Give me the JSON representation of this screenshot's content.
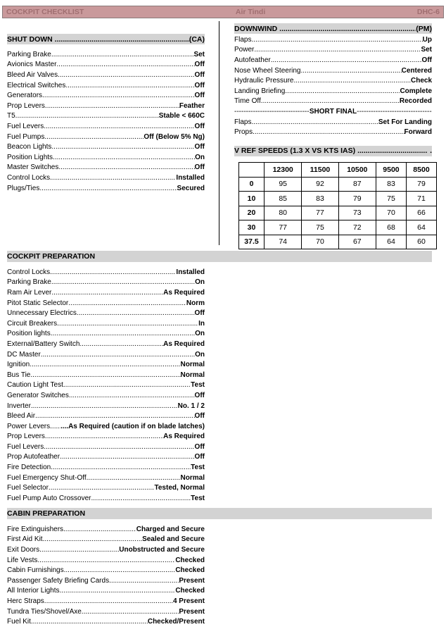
{
  "header": {
    "left": "COCKPIT CHECKLIST",
    "center": "Air Tindi",
    "right": "DHC-6",
    "color": "#c9999b"
  },
  "shutdown": {
    "title": "SHUT DOWN",
    "role": "(CA)",
    "items": [
      [
        "Parking Brake",
        "Set"
      ],
      [
        "Avionics Master",
        "Off"
      ],
      [
        "Bleed Air Valves",
        "Off"
      ],
      [
        "Electrical Switches",
        "Off"
      ],
      [
        "Generators",
        "Off"
      ],
      [
        "Prop Levers",
        "Feather"
      ],
      [
        "T5",
        "Stable < 660C"
      ],
      [
        "Fuel Levers",
        "Off"
      ],
      [
        "Fuel Pumps",
        "Off (Below 5% Ng)"
      ],
      [
        "Beacon Lights",
        "Off"
      ],
      [
        "Position Lights",
        "On"
      ],
      [
        "Master Switches",
        "Off"
      ],
      [
        "Control Locks",
        "Installed"
      ],
      [
        "Plugs/Ties",
        "Secured"
      ]
    ]
  },
  "downwind": {
    "title": "DOWNWIND",
    "role": "(PM)",
    "items": [
      [
        "Flaps",
        "Up"
      ],
      [
        "Power",
        "Set"
      ],
      [
        "Autofeather",
        "Off"
      ],
      [
        "Nose Wheel Steering",
        "Centered"
      ],
      [
        "Hydraulic Pressure",
        "Check"
      ],
      [
        "Landing Briefing",
        "Complete"
      ],
      [
        "Time Off",
        "Recorded"
      ]
    ],
    "short_final_label": "SHORT FINAL",
    "short_final_items": [
      [
        "Flaps",
        "Set For Landing"
      ],
      [
        "Props",
        "Forward"
      ]
    ]
  },
  "vref": {
    "title": "V REF SPEEDS (1.3 X VS KTS IAS)",
    "suffix": ".",
    "columns": [
      "",
      "12300",
      "11500",
      "10500",
      "9500",
      "8500"
    ],
    "rows": [
      [
        "0",
        "95",
        "92",
        "87",
        "83",
        "79"
      ],
      [
        "10",
        "85",
        "83",
        "79",
        "75",
        "71"
      ],
      [
        "20",
        "80",
        "77",
        "73",
        "70",
        "66"
      ],
      [
        "30",
        "77",
        "75",
        "72",
        "68",
        "64"
      ],
      [
        "37.5",
        "74",
        "70",
        "67",
        "64",
        "60"
      ]
    ]
  },
  "cockpit_prep": {
    "title": "COCKPIT PREPARATION",
    "items": [
      [
        "Control Locks",
        "Installed"
      ],
      [
        "Parking Brake",
        "On"
      ],
      [
        "Ram Air Lever",
        "As Required"
      ],
      [
        "Pitot Static Selector",
        "Norm"
      ],
      [
        "Unnecessary Electrics",
        "Off"
      ],
      [
        "Circuit Breakers",
        "In"
      ],
      [
        "Position lights",
        "On"
      ],
      [
        "External/Battery Switch",
        "As Required"
      ],
      [
        "DC Master",
        "On"
      ],
      [
        "Ignition",
        "Normal"
      ],
      [
        "Bus Tie",
        "Normal"
      ],
      [
        "Caution Light Test",
        "Test"
      ],
      [
        "Generator Switches",
        "Off"
      ],
      [
        "Inverter",
        "No. 1 / 2"
      ],
      [
        "Bleed Air",
        "Off"
      ],
      [
        "Power Levers",
        "....As Required (caution if on blade latches)"
      ],
      [
        "Prop Levers",
        "As Required"
      ],
      [
        "Fuel Levers",
        "Off"
      ],
      [
        "Prop Autofeather",
        "Off"
      ],
      [
        "Fire Detection",
        "Test"
      ],
      [
        "Fuel Emergency Shut-Off",
        "Normal"
      ],
      [
        "Fuel Selector",
        "Tested, Normal"
      ],
      [
        "Fuel Pump Auto Crossover",
        "Test"
      ]
    ]
  },
  "cabin_prep": {
    "title": "CABIN PREPARATION",
    "items": [
      [
        "Fire Extinguishers",
        "Charged and Secure"
      ],
      [
        "First Aid Kit",
        "Sealed and Secure"
      ],
      [
        "Exit Doors",
        "Unobstructed and Secure"
      ],
      [
        "Life Vests",
        "Checked"
      ],
      [
        "Cabin Furnishings",
        "Checked"
      ],
      [
        "Passenger Safety Briefing Cards",
        "Present"
      ],
      [
        "All Interior Lights",
        "Checked"
      ],
      [
        "Herc Straps",
        "4 Present"
      ],
      [
        "Tundra Ties/Shovel/Axe",
        "Present"
      ],
      [
        "Fuel Kit",
        "Checked/Present"
      ]
    ]
  }
}
